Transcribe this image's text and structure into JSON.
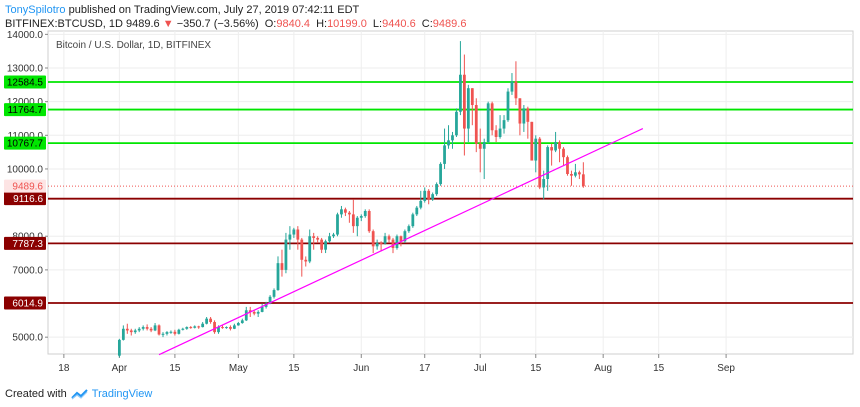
{
  "header": {
    "author": "TonySpilotro",
    "published_text": " published on TradingView.com, July 27, 2019 07:42:11 EDT",
    "symbol": "BITFINEX:BTCUSD, 1D",
    "last": "9489.6",
    "change_icon": "triangle-down-icon",
    "change": "−350.7 (−3.56%)",
    "o_label": "O:",
    "o_value": "9840.4",
    "h_label": "H:",
    "h_value": "10199.0",
    "l_label": "L:",
    "l_value": "9440.6",
    "c_label": "C:",
    "c_value": "9489.6"
  },
  "footer": {
    "created_with": "Created with",
    "brand_icon": "tradingview-logo-icon",
    "brand": "TradingView"
  },
  "colors": {
    "up": "#26a69a",
    "down": "#ef5350",
    "green_level": "#00e600",
    "red_level": "#8b0000",
    "trendline": "#ff00ff"
  },
  "chart_data": {
    "type": "candlestick",
    "title": "Bitcoin / U.S. Dollar, 1D, BITFINEX",
    "ylim": [
      4500,
      14100
    ],
    "y_ticks": [
      5000,
      7000,
      8000,
      10000,
      11000,
      12000,
      13000,
      14000
    ],
    "y_tick_labels": [
      "5000.0",
      "7000.0",
      "8000.0",
      "10000.0",
      "11000.0",
      "12000.0",
      "13000.0",
      "14000.0"
    ],
    "x_range": [
      "2019-03-14",
      "2019-10-03"
    ],
    "x_ticks": [
      {
        "date": "2019-03-18",
        "label": "18"
      },
      {
        "date": "2019-04-01",
        "label": "Apr"
      },
      {
        "date": "2019-04-15",
        "label": "15"
      },
      {
        "date": "2019-05-01",
        "label": "May"
      },
      {
        "date": "2019-05-15",
        "label": "15"
      },
      {
        "date": "2019-06-01",
        "label": "Jun"
      },
      {
        "date": "2019-06-17",
        "label": "17"
      },
      {
        "date": "2019-07-01",
        "label": "Jul"
      },
      {
        "date": "2019-07-15",
        "label": "15"
      },
      {
        "date": "2019-08-01",
        "label": "Aug"
      },
      {
        "date": "2019-08-15",
        "label": "15"
      },
      {
        "date": "2019-09-01",
        "label": "Sep"
      }
    ],
    "grid": true,
    "horizontal_levels": [
      {
        "value": 12584.5,
        "label": "12584.5",
        "color": "#00e600"
      },
      {
        "value": 11764.7,
        "label": "11764.7",
        "color": "#00e600"
      },
      {
        "value": 10767.7,
        "label": "10767.7",
        "color": "#00e600"
      },
      {
        "value": 9116.6,
        "label": "9116.6",
        "color": "#8b0000"
      },
      {
        "value": 7787.3,
        "label": "7787.3",
        "color": "#8b0000"
      },
      {
        "value": 6014.9,
        "label": "6014.9",
        "color": "#8b0000"
      }
    ],
    "last_price": {
      "value": 9489.6,
      "label": "9489.6"
    },
    "trendline": {
      "start": {
        "date": "2019-04-11",
        "value": 4480
      },
      "end": {
        "date": "2019-08-11",
        "value": 11200
      }
    },
    "candles": [
      {
        "date": "2019-04-01",
        "o": 4450,
        "h": 4950,
        "l": 4400,
        "c": 4920
      },
      {
        "date": "2019-04-02",
        "o": 4920,
        "h": 5350,
        "l": 4900,
        "c": 5250
      },
      {
        "date": "2019-04-03",
        "o": 5250,
        "h": 5400,
        "l": 5100,
        "c": 5200
      },
      {
        "date": "2019-04-04",
        "o": 5200,
        "h": 5250,
        "l": 5050,
        "c": 5150
      },
      {
        "date": "2019-04-05",
        "o": 5150,
        "h": 5250,
        "l": 5100,
        "c": 5200
      },
      {
        "date": "2019-04-06",
        "o": 5200,
        "h": 5300,
        "l": 5150,
        "c": 5250
      },
      {
        "date": "2019-04-07",
        "o": 5250,
        "h": 5350,
        "l": 5200,
        "c": 5300
      },
      {
        "date": "2019-04-08",
        "o": 5300,
        "h": 5380,
        "l": 5200,
        "c": 5250
      },
      {
        "date": "2019-04-09",
        "o": 5250,
        "h": 5300,
        "l": 5150,
        "c": 5200
      },
      {
        "date": "2019-04-10",
        "o": 5200,
        "h": 5420,
        "l": 5180,
        "c": 5350
      },
      {
        "date": "2019-04-11",
        "o": 5350,
        "h": 5380,
        "l": 5050,
        "c": 5080
      },
      {
        "date": "2019-04-12",
        "o": 5080,
        "h": 5150,
        "l": 5000,
        "c": 5100
      },
      {
        "date": "2019-04-13",
        "o": 5100,
        "h": 5180,
        "l": 5050,
        "c": 5150
      },
      {
        "date": "2019-04-14",
        "o": 5150,
        "h": 5200,
        "l": 5100,
        "c": 5160
      },
      {
        "date": "2019-04-15",
        "o": 5160,
        "h": 5220,
        "l": 5050,
        "c": 5100
      },
      {
        "date": "2019-04-16",
        "o": 5100,
        "h": 5250,
        "l": 5080,
        "c": 5220
      },
      {
        "date": "2019-04-17",
        "o": 5220,
        "h": 5280,
        "l": 5200,
        "c": 5250
      },
      {
        "date": "2019-04-18",
        "o": 5250,
        "h": 5320,
        "l": 5220,
        "c": 5300
      },
      {
        "date": "2019-04-19",
        "o": 5300,
        "h": 5330,
        "l": 5250,
        "c": 5280
      },
      {
        "date": "2019-04-20",
        "o": 5280,
        "h": 5350,
        "l": 5260,
        "c": 5320
      },
      {
        "date": "2019-04-21",
        "o": 5320,
        "h": 5340,
        "l": 5250,
        "c": 5300
      },
      {
        "date": "2019-04-22",
        "o": 5300,
        "h": 5450,
        "l": 5290,
        "c": 5400
      },
      {
        "date": "2019-04-23",
        "o": 5400,
        "h": 5600,
        "l": 5380,
        "c": 5550
      },
      {
        "date": "2019-04-24",
        "o": 5550,
        "h": 5600,
        "l": 5400,
        "c": 5450
      },
      {
        "date": "2019-04-25",
        "o": 5450,
        "h": 5500,
        "l": 5100,
        "c": 5150
      },
      {
        "date": "2019-04-26",
        "o": 5150,
        "h": 5350,
        "l": 5100,
        "c": 5300
      },
      {
        "date": "2019-04-27",
        "o": 5300,
        "h": 5350,
        "l": 5250,
        "c": 5280
      },
      {
        "date": "2019-04-28",
        "o": 5280,
        "h": 5320,
        "l": 5250,
        "c": 5300
      },
      {
        "date": "2019-04-29",
        "o": 5300,
        "h": 5350,
        "l": 5200,
        "c": 5250
      },
      {
        "date": "2019-04-30",
        "o": 5250,
        "h": 5400,
        "l": 5240,
        "c": 5350
      },
      {
        "date": "2019-05-01",
        "o": 5350,
        "h": 5450,
        "l": 5340,
        "c": 5420
      },
      {
        "date": "2019-05-02",
        "o": 5420,
        "h": 5550,
        "l": 5400,
        "c": 5500
      },
      {
        "date": "2019-05-03",
        "o": 5500,
        "h": 5900,
        "l": 5480,
        "c": 5800
      },
      {
        "date": "2019-05-04",
        "o": 5800,
        "h": 5900,
        "l": 5600,
        "c": 5750
      },
      {
        "date": "2019-05-05",
        "o": 5750,
        "h": 5800,
        "l": 5650,
        "c": 5700
      },
      {
        "date": "2019-05-06",
        "o": 5700,
        "h": 5800,
        "l": 5600,
        "c": 5750
      },
      {
        "date": "2019-05-07",
        "o": 5750,
        "h": 6000,
        "l": 5740,
        "c": 5900
      },
      {
        "date": "2019-05-08",
        "o": 5900,
        "h": 6050,
        "l": 5850,
        "c": 6000
      },
      {
        "date": "2019-05-09",
        "o": 6000,
        "h": 6250,
        "l": 5980,
        "c": 6200
      },
      {
        "date": "2019-05-10",
        "o": 6200,
        "h": 6450,
        "l": 6150,
        "c": 6400
      },
      {
        "date": "2019-05-11",
        "o": 6400,
        "h": 7400,
        "l": 6380,
        "c": 7200
      },
      {
        "date": "2019-05-12",
        "o": 7200,
        "h": 7600,
        "l": 6800,
        "c": 7000
      },
      {
        "date": "2019-05-13",
        "o": 7000,
        "h": 8100,
        "l": 6900,
        "c": 7900
      },
      {
        "date": "2019-05-14",
        "o": 7900,
        "h": 8300,
        "l": 7600,
        "c": 8050
      },
      {
        "date": "2019-05-15",
        "o": 8050,
        "h": 8250,
        "l": 7950,
        "c": 8200
      },
      {
        "date": "2019-05-16",
        "o": 8200,
        "h": 8300,
        "l": 7600,
        "c": 7900
      },
      {
        "date": "2019-05-17",
        "o": 7900,
        "h": 7950,
        "l": 6800,
        "c": 7300
      },
      {
        "date": "2019-05-18",
        "o": 7300,
        "h": 7400,
        "l": 7100,
        "c": 7250
      },
      {
        "date": "2019-05-19",
        "o": 7250,
        "h": 8200,
        "l": 7200,
        "c": 8000
      },
      {
        "date": "2019-05-20",
        "o": 8000,
        "h": 8100,
        "l": 7600,
        "c": 7950
      },
      {
        "date": "2019-05-21",
        "o": 7950,
        "h": 8000,
        "l": 7800,
        "c": 7900
      },
      {
        "date": "2019-05-22",
        "o": 7900,
        "h": 7950,
        "l": 7500,
        "c": 7600
      },
      {
        "date": "2019-05-23",
        "o": 7600,
        "h": 7900,
        "l": 7500,
        "c": 7850
      },
      {
        "date": "2019-05-24",
        "o": 7850,
        "h": 8100,
        "l": 7800,
        "c": 8000
      },
      {
        "date": "2019-05-25",
        "o": 8000,
        "h": 8100,
        "l": 7950,
        "c": 8050
      },
      {
        "date": "2019-05-26",
        "o": 8050,
        "h": 8700,
        "l": 8000,
        "c": 8650
      },
      {
        "date": "2019-05-27",
        "o": 8650,
        "h": 8900,
        "l": 8550,
        "c": 8800
      },
      {
        "date": "2019-05-28",
        "o": 8800,
        "h": 8850,
        "l": 8600,
        "c": 8700
      },
      {
        "date": "2019-05-29",
        "o": 8700,
        "h": 8750,
        "l": 8400,
        "c": 8650
      },
      {
        "date": "2019-05-30",
        "o": 8650,
        "h": 9100,
        "l": 8100,
        "c": 8300
      },
      {
        "date": "2019-05-31",
        "o": 8300,
        "h": 8600,
        "l": 8000,
        "c": 8550
      },
      {
        "date": "2019-06-01",
        "o": 8550,
        "h": 8650,
        "l": 8450,
        "c": 8600
      },
      {
        "date": "2019-06-02",
        "o": 8600,
        "h": 8800,
        "l": 8550,
        "c": 8750
      },
      {
        "date": "2019-06-03",
        "o": 8750,
        "h": 8800,
        "l": 8100,
        "c": 8150
      },
      {
        "date": "2019-06-04",
        "o": 8150,
        "h": 8200,
        "l": 7500,
        "c": 7700
      },
      {
        "date": "2019-06-05",
        "o": 7700,
        "h": 7900,
        "l": 7600,
        "c": 7800
      },
      {
        "date": "2019-06-06",
        "o": 7800,
        "h": 7850,
        "l": 7550,
        "c": 7780
      },
      {
        "date": "2019-06-07",
        "o": 7780,
        "h": 8100,
        "l": 7750,
        "c": 8000
      },
      {
        "date": "2019-06-08",
        "o": 8000,
        "h": 8050,
        "l": 7800,
        "c": 7900
      },
      {
        "date": "2019-06-09",
        "o": 7900,
        "h": 7950,
        "l": 7500,
        "c": 7650
      },
      {
        "date": "2019-06-10",
        "o": 7650,
        "h": 8050,
        "l": 7600,
        "c": 8000
      },
      {
        "date": "2019-06-11",
        "o": 8000,
        "h": 8020,
        "l": 7700,
        "c": 7850
      },
      {
        "date": "2019-06-12",
        "o": 7850,
        "h": 8200,
        "l": 7800,
        "c": 8150
      },
      {
        "date": "2019-06-13",
        "o": 8150,
        "h": 8350,
        "l": 8100,
        "c": 8300
      },
      {
        "date": "2019-06-14",
        "o": 8300,
        "h": 8700,
        "l": 8250,
        "c": 8650
      },
      {
        "date": "2019-06-15",
        "o": 8650,
        "h": 8900,
        "l": 8600,
        "c": 8850
      },
      {
        "date": "2019-06-16",
        "o": 8850,
        "h": 9350,
        "l": 8800,
        "c": 9050
      },
      {
        "date": "2019-06-17",
        "o": 9050,
        "h": 9450,
        "l": 9000,
        "c": 9350
      },
      {
        "date": "2019-06-18",
        "o": 9350,
        "h": 9400,
        "l": 8950,
        "c": 9100
      },
      {
        "date": "2019-06-19",
        "o": 9100,
        "h": 9300,
        "l": 9050,
        "c": 9250
      },
      {
        "date": "2019-06-20",
        "o": 9250,
        "h": 9600,
        "l": 9200,
        "c": 9550
      },
      {
        "date": "2019-06-21",
        "o": 9550,
        "h": 10200,
        "l": 9500,
        "c": 10150
      },
      {
        "date": "2019-06-22",
        "o": 10150,
        "h": 11200,
        "l": 10000,
        "c": 10700
      },
      {
        "date": "2019-06-23",
        "o": 10700,
        "h": 11300,
        "l": 10600,
        "c": 10850
      },
      {
        "date": "2019-06-24",
        "o": 10850,
        "h": 11100,
        "l": 10600,
        "c": 11000
      },
      {
        "date": "2019-06-25",
        "o": 11000,
        "h": 11800,
        "l": 10950,
        "c": 11700
      },
      {
        "date": "2019-06-26",
        "o": 11700,
        "h": 13800,
        "l": 11600,
        "c": 12800
      },
      {
        "date": "2019-06-27",
        "o": 12800,
        "h": 13400,
        "l": 10400,
        "c": 11200
      },
      {
        "date": "2019-06-28",
        "o": 11200,
        "h": 12500,
        "l": 10800,
        "c": 12400
      },
      {
        "date": "2019-06-29",
        "o": 12400,
        "h": 12400,
        "l": 11300,
        "c": 11900
      },
      {
        "date": "2019-06-30",
        "o": 11900,
        "h": 12100,
        "l": 10500,
        "c": 10750
      },
      {
        "date": "2019-07-01",
        "o": 10750,
        "h": 11200,
        "l": 9900,
        "c": 10600
      },
      {
        "date": "2019-07-02",
        "o": 10600,
        "h": 10900,
        "l": 9700,
        "c": 10800
      },
      {
        "date": "2019-07-03",
        "o": 10800,
        "h": 12000,
        "l": 10750,
        "c": 11950
      },
      {
        "date": "2019-07-04",
        "o": 11950,
        "h": 12000,
        "l": 11000,
        "c": 11150
      },
      {
        "date": "2019-07-05",
        "o": 11150,
        "h": 11300,
        "l": 10800,
        "c": 10950
      },
      {
        "date": "2019-07-06",
        "o": 10950,
        "h": 11600,
        "l": 10900,
        "c": 11200
      },
      {
        "date": "2019-07-07",
        "o": 11200,
        "h": 11600,
        "l": 11050,
        "c": 11450
      },
      {
        "date": "2019-07-08",
        "o": 11450,
        "h": 12400,
        "l": 11400,
        "c": 12300
      },
      {
        "date": "2019-07-09",
        "o": 12300,
        "h": 12850,
        "l": 12200,
        "c": 12600
      },
      {
        "date": "2019-07-10",
        "o": 12600,
        "h": 13200,
        "l": 11900,
        "c": 12100
      },
      {
        "date": "2019-07-11",
        "o": 12100,
        "h": 12100,
        "l": 11000,
        "c": 11350
      },
      {
        "date": "2019-07-12",
        "o": 11350,
        "h": 11900,
        "l": 11100,
        "c": 11800
      },
      {
        "date": "2019-07-13",
        "o": 11800,
        "h": 11850,
        "l": 10900,
        "c": 11400
      },
      {
        "date": "2019-07-14",
        "o": 11400,
        "h": 11400,
        "l": 10250,
        "c": 10250
      },
      {
        "date": "2019-07-15",
        "o": 10250,
        "h": 11000,
        "l": 9900,
        "c": 10900
      },
      {
        "date": "2019-07-16",
        "o": 10900,
        "h": 10950,
        "l": 9400,
        "c": 9450
      },
      {
        "date": "2019-07-17",
        "o": 9450,
        "h": 9950,
        "l": 9100,
        "c": 9700
      },
      {
        "date": "2019-07-18",
        "o": 9700,
        "h": 10700,
        "l": 9350,
        "c": 10650
      },
      {
        "date": "2019-07-19",
        "o": 10650,
        "h": 10750,
        "l": 10100,
        "c": 10550
      },
      {
        "date": "2019-07-20",
        "o": 10550,
        "h": 11100,
        "l": 10500,
        "c": 10800
      },
      {
        "date": "2019-07-21",
        "o": 10800,
        "h": 10850,
        "l": 10200,
        "c": 10600
      },
      {
        "date": "2019-07-22",
        "o": 10600,
        "h": 10650,
        "l": 10100,
        "c": 10350
      },
      {
        "date": "2019-07-23",
        "o": 10350,
        "h": 10400,
        "l": 9800,
        "c": 9850
      },
      {
        "date": "2019-07-24",
        "o": 9850,
        "h": 9950,
        "l": 9500,
        "c": 9800
      },
      {
        "date": "2019-07-25",
        "o": 9800,
        "h": 10150,
        "l": 9750,
        "c": 9900
      },
      {
        "date": "2019-07-26",
        "o": 9900,
        "h": 9950,
        "l": 9700,
        "c": 9840
      },
      {
        "date": "2019-07-27",
        "o": 9840.4,
        "h": 10199,
        "l": 9440.6,
        "c": 9489.6
      }
    ]
  }
}
